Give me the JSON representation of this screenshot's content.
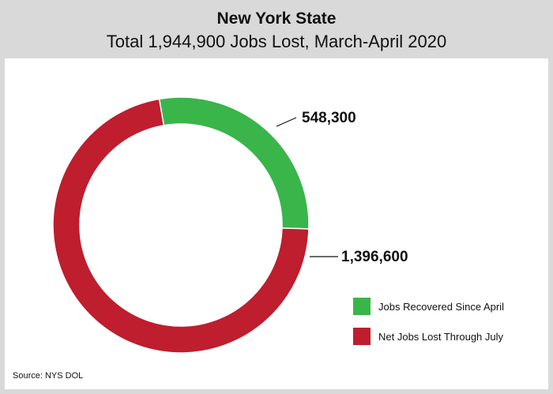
{
  "header": {
    "title": "New York State",
    "subtitle": "Total 1,944,900 Jobs Lost, March-April 2020"
  },
  "source": "Source: NYS DOL",
  "chart_data": {
    "type": "pie",
    "donut": true,
    "title": "New York State",
    "subtitle": "Total 1,944,900 Jobs Lost, March-April 2020",
    "categories": [
      "Jobs Recovered Since April",
      "Net Jobs Lost Through July"
    ],
    "values": [
      548300,
      1396600
    ],
    "value_labels": [
      "548,300",
      "1,396,600"
    ],
    "colors": [
      "#39b54a",
      "#be1e2d"
    ],
    "legend_position": "bottom-right"
  }
}
